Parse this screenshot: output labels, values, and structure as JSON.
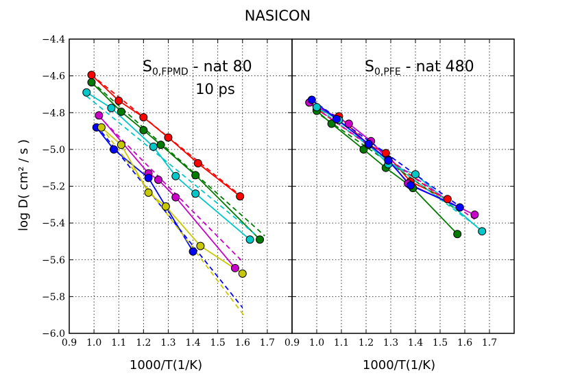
{
  "chart_data": {
    "type": "line",
    "title": "NASICON",
    "ylabel": "log D( cm² / s )",
    "panels": [
      {
        "name": "left",
        "xlabel": "1000/T(1/K)",
        "xlim": [
          0.9,
          1.8
        ],
        "ylim": [
          -6.0,
          -4.4
        ],
        "xticks": [
          "0.9",
          "1.0",
          "1.1",
          "1.2",
          "1.3",
          "1.4",
          "1.5",
          "1.6",
          "1.7"
        ],
        "yticks": [
          "−4.4",
          "−4.6",
          "−4.8",
          "−5.0",
          "−5.2",
          "−5.4",
          "−5.6",
          "−5.8",
          "−6.0"
        ],
        "annotation_main": "S",
        "annotation_sub": "0,FPMD",
        "annotation_rest": " - nat 80",
        "annotation2": "10 ps",
        "series": [
          {
            "color": "#ff0000",
            "x": [
              0.99,
              1.1,
              1.2,
              1.3,
              1.42,
              1.59
            ],
            "y": [
              -4.595,
              -4.735,
              -4.825,
              -4.935,
              -5.075,
              -5.255
            ],
            "fit_x": [
              0.99,
              1.6
            ],
            "fit_y": [
              -4.595,
              -5.26
            ]
          },
          {
            "color": "#007a00",
            "x": [
              0.99,
              1.11,
              1.2,
              1.27,
              1.41,
              1.67
            ],
            "y": [
              -4.635,
              -4.795,
              -4.895,
              -4.975,
              -5.14,
              -5.49
            ],
            "fit_x": [
              0.99,
              1.69
            ],
            "fit_y": [
              -4.63,
              -5.47
            ]
          },
          {
            "color": "#00c8c8",
            "x": [
              0.97,
              1.07,
              1.24,
              1.33,
              1.41,
              1.63
            ],
            "y": [
              -4.69,
              -4.775,
              -4.985,
              -5.145,
              -5.24,
              -5.49
            ],
            "fit_x": [
              0.97,
              1.65
            ],
            "fit_y": [
              -4.71,
              -5.46
            ]
          },
          {
            "color": "#c800c8",
            "x": [
              1.02,
              1.22,
              1.26,
              1.33,
              1.57
            ],
            "y": [
              -4.815,
              -5.13,
              -5.165,
              -5.26,
              -5.645
            ],
            "fit_x": [
              1.02,
              1.6
            ],
            "fit_y": [
              -4.82,
              -5.61
            ]
          },
          {
            "color": "#0000ff",
            "x": [
              1.01,
              1.08,
              1.22,
              1.4
            ],
            "y": [
              -4.88,
              -5.0,
              -5.155,
              -5.555
            ],
            "fit_x": [
              1.01,
              1.6
            ],
            "fit_y": [
              -4.87,
              -5.86
            ]
          },
          {
            "color": "#c8c800",
            "x": [
              1.03,
              1.11,
              1.22,
              1.29,
              1.43,
              1.6
            ],
            "y": [
              -4.88,
              -4.975,
              -5.235,
              -5.31,
              -5.525,
              -5.675
            ],
            "fit_x": [
              1.03,
              1.61
            ],
            "fit_y": [
              -4.88,
              -5.91
            ]
          }
        ]
      },
      {
        "name": "right",
        "xlabel": "1000/T(1/K)",
        "xlim": [
          0.9,
          1.8
        ],
        "ylim": [
          -6.0,
          -4.4
        ],
        "xticks": [
          "0.9",
          "1.0",
          "1.1",
          "1.2",
          "1.3",
          "1.4",
          "1.5",
          "1.6",
          "1.7"
        ],
        "annotation_main": "S",
        "annotation_sub": "0,PFE",
        "annotation_rest": " - nat 480",
        "series": [
          {
            "color": "#ff0000",
            "x": [
              1.0,
              1.09,
              1.21,
              1.28,
              1.38,
              1.53
            ],
            "y": [
              -4.785,
              -4.82,
              -4.975,
              -5.02,
              -5.175,
              -5.27
            ],
            "fit_x": [
              0.99,
              1.57
            ],
            "fit_y": [
              -4.77,
              -5.32
            ]
          },
          {
            "color": "#007a00",
            "x": [
              1.0,
              1.06,
              1.19,
              1.28,
              1.39,
              1.57
            ],
            "y": [
              -4.79,
              -4.86,
              -5.0,
              -5.1,
              -5.21,
              -5.46
            ],
            "fit_x": [
              0.99,
              1.58
            ],
            "fit_y": [
              -4.79,
              -5.34
            ]
          },
          {
            "color": "#00c8c8",
            "x": [
              1.0,
              1.09,
              1.21,
              1.29,
              1.4,
              1.67
            ],
            "y": [
              -4.77,
              -4.84,
              -4.975,
              -5.08,
              -5.135,
              -5.445
            ],
            "fit_x": [
              0.99,
              1.67
            ],
            "fit_y": [
              -4.76,
              -5.44
            ]
          },
          {
            "color": "#c800c8",
            "x": [
              0.97,
              1.13,
              1.22,
              1.29,
              1.37,
              1.64
            ],
            "y": [
              -4.745,
              -4.86,
              -4.955,
              -5.055,
              -5.185,
              -5.355
            ],
            "fit_x": [
              0.97,
              1.64
            ],
            "fit_y": [
              -4.75,
              -5.38
            ]
          },
          {
            "color": "#0000ff",
            "x": [
              0.98,
              1.08,
              1.21,
              1.29,
              1.38,
              1.58
            ],
            "y": [
              -4.73,
              -4.835,
              -4.97,
              -5.06,
              -5.195,
              -5.315
            ],
            "fit_x": [
              0.98,
              1.59
            ],
            "fit_y": [
              -4.73,
              -5.32
            ]
          }
        ]
      }
    ]
  }
}
